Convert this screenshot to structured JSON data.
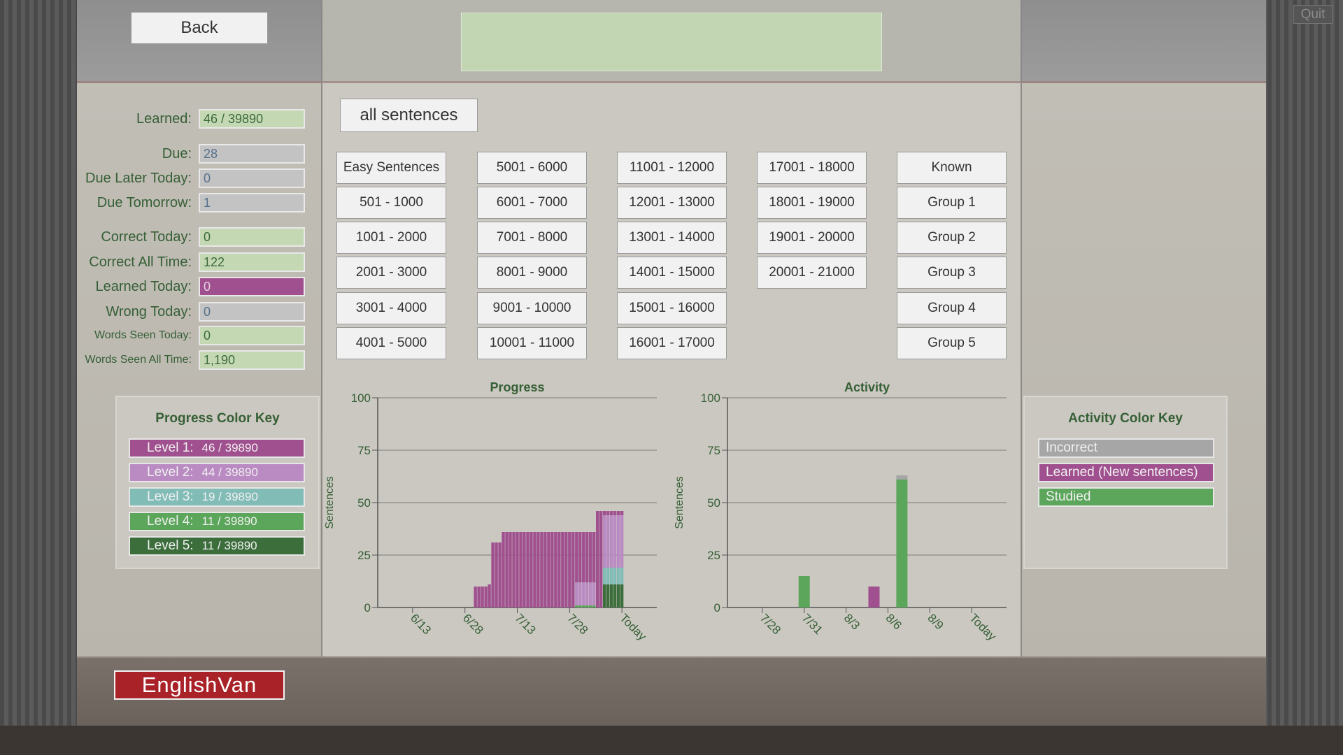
{
  "header": {
    "back": "Back",
    "quit": "Quit"
  },
  "stats": [
    {
      "label": "Learned:",
      "value": "46 / 39890",
      "color": "#c4d8b4",
      "text_color": "#3d6b3d"
    },
    {
      "label": "Due:",
      "value": "28",
      "color": "#c3c3c3",
      "text_color": "#55708c"
    },
    {
      "label": "Due Later Today:",
      "value": "0",
      "color": "#c3c3c3",
      "text_color": "#55708c"
    },
    {
      "label": "Due Tomorrow:",
      "value": "1",
      "color": "#c3c3c3",
      "text_color": "#55708c"
    },
    {
      "label": "Correct Today:",
      "value": "0",
      "color": "#c4d8b4",
      "text_color": "#3d6b3d"
    },
    {
      "label": "Correct All Time:",
      "value": "122",
      "color": "#c4d8b4",
      "text_color": "#3d6b3d"
    },
    {
      "label": "Learned Today:",
      "value": "0",
      "color": "#a0508f",
      "text_color": "#e6d0e2"
    },
    {
      "label": "Wrong Today:",
      "value": "0",
      "color": "#c3c3c3",
      "text_color": "#55708c"
    },
    {
      "label": "Words Seen Today:",
      "value": "0",
      "color": "#c4d8b4",
      "text_color": "#3d6b3d"
    },
    {
      "label": "Words Seen All Time:",
      "value": "1,190",
      "color": "#c4d8b4",
      "text_color": "#3d6b3d"
    }
  ],
  "filter": "all sentences",
  "buttons": [
    [
      "Easy Sentences",
      "501 - 1000",
      "1001 - 2000",
      "2001 - 3000",
      "3001 - 4000",
      "4001 - 5000"
    ],
    [
      "5001 - 6000",
      "6001 - 7000",
      "7001 - 8000",
      "8001 - 9000",
      "9001 - 10000",
      "10001 - 11000"
    ],
    [
      "11001 - 12000",
      "12001 - 13000",
      "13001 - 14000",
      "14001 - 15000",
      "15001 - 16000",
      "16001 - 17000"
    ],
    [
      "17001 - 18000",
      "18001 - 19000",
      "19001 - 20000",
      "20001 - 21000"
    ],
    [
      "Known",
      "Group 1",
      "Group 2",
      "Group 3",
      "Group 4",
      "Group 5"
    ]
  ],
  "chart_data": [
    {
      "type": "bar",
      "stacked": true,
      "title": "Progress",
      "ylabel": "Sentences",
      "legend_title": "Progress Color Key",
      "x": [
        18,
        19,
        20,
        21,
        22,
        23,
        24,
        25,
        26,
        27,
        28,
        29,
        30,
        31,
        32,
        33,
        34,
        35,
        36,
        37,
        38,
        39,
        40,
        41,
        42,
        43,
        44,
        45,
        46,
        47,
        48,
        49,
        50,
        51,
        52,
        53,
        54,
        55,
        56,
        57,
        58,
        59,
        60
      ],
      "xlim": [
        -10,
        70
      ],
      "xticks": [
        {
          "value": 0,
          "label": "6/13"
        },
        {
          "value": 15,
          "label": "6/28"
        },
        {
          "value": 30,
          "label": "7/13"
        },
        {
          "value": 45,
          "label": "7/28"
        },
        {
          "value": 60,
          "label": "Today"
        }
      ],
      "ylim": [
        0,
        100
      ],
      "yticks": [
        0,
        25,
        50,
        75,
        100
      ],
      "grid": true,
      "series": [
        {
          "name": "Level 1:",
          "total": "46 / 39890",
          "color": "#a0508f",
          "values": [
            10,
            10,
            10,
            10,
            11,
            31,
            31,
            31,
            36,
            36,
            36,
            36,
            36,
            36,
            36,
            36,
            36,
            36,
            36,
            36,
            36,
            36,
            36,
            36,
            36,
            36,
            36,
            36,
            36,
            24,
            24,
            24,
            24,
            24,
            24,
            46,
            46,
            2,
            2,
            2,
            2,
            2,
            2
          ]
        },
        {
          "name": "Level 2:",
          "total": "44 / 39890",
          "color": "#b98bc2",
          "values": [
            0,
            0,
            0,
            0,
            0,
            0,
            0,
            0,
            0,
            0,
            0,
            0,
            0,
            0,
            0,
            0,
            0,
            0,
            0,
            0,
            0,
            0,
            0,
            0,
            0,
            0,
            0,
            0,
            0,
            11,
            11,
            11,
            11,
            11,
            11,
            0,
            0,
            25,
            25,
            25,
            25,
            25,
            25
          ]
        },
        {
          "name": "Level 3:",
          "total": "19 / 39890",
          "color": "#82bcb7",
          "values": [
            0,
            0,
            0,
            0,
            0,
            0,
            0,
            0,
            0,
            0,
            0,
            0,
            0,
            0,
            0,
            0,
            0,
            0,
            0,
            0,
            0,
            0,
            0,
            0,
            0,
            0,
            0,
            0,
            0,
            0,
            0,
            0,
            0,
            0,
            0,
            0,
            0,
            8,
            8,
            8,
            8,
            8,
            8
          ]
        },
        {
          "name": "Level 4:",
          "total": "11 / 39890",
          "color": "#5ba65a",
          "values": [
            0,
            0,
            0,
            0,
            0,
            0,
            0,
            0,
            0,
            0,
            0,
            0,
            0,
            0,
            0,
            0,
            0,
            0,
            0,
            0,
            0,
            0,
            0,
            0,
            0,
            0,
            0,
            0,
            0,
            1,
            1,
            1,
            1,
            1,
            1,
            0,
            0,
            0,
            0,
            0,
            0,
            0,
            0
          ]
        },
        {
          "name": "Level 5:",
          "total": "11 / 39890",
          "color": "#3c6e3c",
          "values": [
            0,
            0,
            0,
            0,
            0,
            0,
            0,
            0,
            0,
            0,
            0,
            0,
            0,
            0,
            0,
            0,
            0,
            0,
            0,
            0,
            0,
            0,
            0,
            0,
            0,
            0,
            0,
            0,
            0,
            0,
            0,
            0,
            0,
            0,
            0,
            0,
            0,
            11,
            11,
            11,
            11,
            11,
            11
          ]
        }
      ]
    },
    {
      "type": "bar",
      "stacked": true,
      "title": "Activity",
      "ylabel": "Sentences",
      "legend_title": "Activity Color Key",
      "x": [
        3,
        8,
        10
      ],
      "xlim": [
        -2.5,
        17.5
      ],
      "xticks": [
        {
          "value": 0,
          "label": "7/28"
        },
        {
          "value": 3,
          "label": "7/31"
        },
        {
          "value": 6,
          "label": "8/3"
        },
        {
          "value": 9,
          "label": "8/6"
        },
        {
          "value": 12,
          "label": "8/9"
        },
        {
          "value": 15,
          "label": "Today"
        }
      ],
      "ylim": [
        0,
        100
      ],
      "yticks": [
        0,
        25,
        50,
        75,
        100
      ],
      "grid": true,
      "series": [
        {
          "name": "Incorrect",
          "color": "#a6a6a6",
          "values": [
            0,
            0,
            2
          ]
        },
        {
          "name": "Learned (New sentences)",
          "color": "#a0508f",
          "values": [
            0,
            10,
            0
          ]
        },
        {
          "name": "Studied",
          "color": "#5ba65a",
          "values": [
            15,
            0,
            61
          ]
        }
      ]
    }
  ],
  "logo": "EnglishVan"
}
